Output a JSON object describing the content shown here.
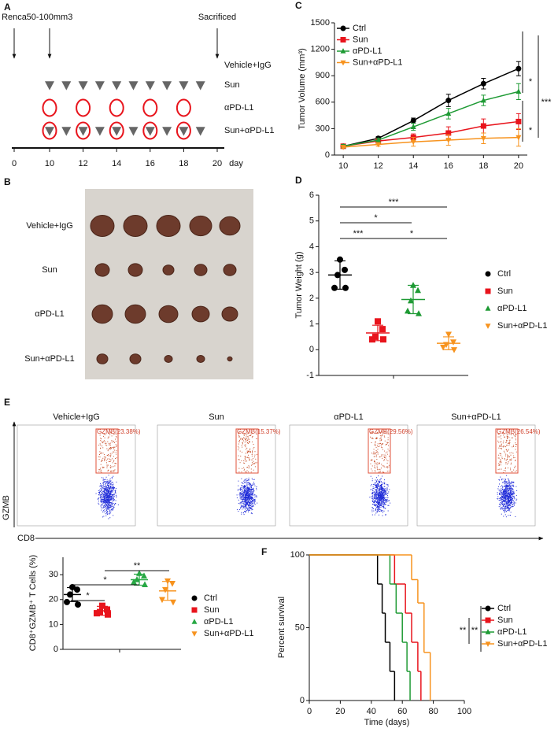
{
  "panel_labels": [
    "A",
    "B",
    "C",
    "D",
    "E",
    "F"
  ],
  "schedule": {
    "events": [
      {
        "label": "Renca",
        "day": 0
      },
      {
        "label": "50-100mm3",
        "day": 10
      },
      {
        "label": "Sacrificed",
        "day": 20
      }
    ],
    "rows": [
      "Vehicle+IgG",
      "Sun",
      "αPD-L1",
      "Sun+αPD-L1"
    ],
    "sun_days": [
      10,
      11,
      12,
      13,
      14,
      15,
      16,
      17,
      18,
      19
    ],
    "antibody_days": [
      10,
      12,
      14,
      16,
      18
    ],
    "ticks": [
      0,
      10,
      12,
      14,
      16,
      18,
      20
    ],
    "axis_label": "day"
  },
  "photo": {
    "rows": [
      "Vehicle+IgG",
      "Sun",
      "αPD-L1",
      "Sun+αPD-L1"
    ]
  },
  "flow": {
    "groups": [
      {
        "title": "Vehicle+IgG",
        "gate": "GZMB(23.38%)"
      },
      {
        "title": "Sun",
        "gate": "GZMB(15.37%)"
      },
      {
        "title": "αPD-L1",
        "gate": "GZMB(29.56%)"
      },
      {
        "title": "Sun+αPD-L1",
        "gate": "GZMB(26.54%)"
      }
    ],
    "y_label": "GZMB",
    "x_label": "CD8"
  },
  "chart_data": [
    {
      "type": "line",
      "y_label": "Tumor Volume (mm³)",
      "x": [
        10,
        12,
        14,
        16,
        18,
        20
      ],
      "xlim": [
        9.5,
        20.5
      ],
      "xticks": [
        10,
        12,
        14,
        16,
        18,
        20
      ],
      "ylim": [
        0,
        1500
      ],
      "yticks": [
        0,
        300,
        600,
        900,
        1200,
        1500
      ],
      "series": [
        {
          "name": "Ctrl",
          "color": "#000000",
          "marker": "circle",
          "values": [
            100,
            190,
            390,
            620,
            810,
            980
          ],
          "errors": [
            20,
            20,
            30,
            70,
            60,
            80
          ]
        },
        {
          "name": "Sun",
          "color": "#e8141c",
          "marker": "square",
          "values": [
            100,
            160,
            200,
            250,
            330,
            380
          ],
          "errors": [
            20,
            20,
            40,
            70,
            80,
            90
          ]
        },
        {
          "name": "αPD-L1",
          "color": "#1e9a34",
          "marker": "tri-up",
          "values": [
            100,
            170,
            320,
            470,
            620,
            720
          ],
          "errors": [
            20,
            20,
            40,
            60,
            60,
            90
          ]
        },
        {
          "name": "Sun+αPD-L1",
          "color": "#f7931e",
          "marker": "tri-down",
          "values": [
            90,
            120,
            150,
            170,
            190,
            200
          ],
          "errors": [
            10,
            20,
            50,
            60,
            60,
            100
          ]
        }
      ],
      "annotations": [
        "*",
        "*",
        "***"
      ]
    },
    {
      "type": "dot",
      "y_label": "Tumor Weight (g)",
      "ylim": [
        -1,
        6
      ],
      "yticks": [
        -1,
        0,
        1,
        2,
        3,
        4,
        5,
        6
      ],
      "series": [
        {
          "name": "Ctrl",
          "color": "#000000",
          "marker": "circle",
          "values": [
            3.5,
            3.1,
            2.9,
            2.4,
            2.4
          ],
          "mean": 2.9,
          "sd": 0.55
        },
        {
          "name": "Sun",
          "color": "#e8141c",
          "marker": "square",
          "values": [
            1.1,
            0.8,
            0.5,
            0.4,
            0.4
          ],
          "mean": 0.65,
          "sd": 0.3
        },
        {
          "name": "αPD-L1",
          "color": "#1e9a34",
          "marker": "tri-up",
          "values": [
            2.5,
            2.3,
            1.9,
            1.5,
            1.4
          ],
          "mean": 1.95,
          "sd": 0.55
        },
        {
          "name": "Sun+αPD-L1",
          "color": "#f7931e",
          "marker": "tri-down",
          "values": [
            0.6,
            0.3,
            0.2,
            0.1,
            0.0
          ],
          "mean": 0.25,
          "sd": 0.25
        }
      ],
      "annotations": [
        "***",
        "*",
        "***",
        "*"
      ]
    },
    {
      "type": "dot",
      "y_label": "CD8⁺GZMB⁺ T Cells (%)",
      "ylim": [
        0,
        37
      ],
      "yticks": [
        0,
        10,
        20,
        30
      ],
      "series": [
        {
          "name": "Ctrl",
          "color": "#000000",
          "marker": "circle",
          "values": [
            25,
            24,
            22,
            19,
            18
          ],
          "mean": 22,
          "sd": 2.8
        },
        {
          "name": "Sun",
          "color": "#e8141c",
          "marker": "square",
          "values": [
            17.5,
            16,
            15,
            14.5,
            14
          ],
          "mean": 15.5,
          "sd": 1.8
        },
        {
          "name": "αPD-L1",
          "color": "#27a844",
          "marker": "tri-up",
          "values": [
            30.5,
            29.5,
            28,
            27,
            26
          ],
          "mean": 28,
          "sd": 2.2
        },
        {
          "name": "Sun+αPD-L1",
          "color": "#f7931e",
          "marker": "tri-down",
          "values": [
            27.5,
            26.5,
            24,
            20,
            19
          ],
          "mean": 23.5,
          "sd": 3.8
        }
      ],
      "annotations": [
        "**",
        "*",
        "*"
      ]
    },
    {
      "type": "step",
      "x_label": "Time (days)",
      "y_label": "Percent survival",
      "xlim": [
        0,
        100
      ],
      "xticks": [
        0,
        20,
        40,
        60,
        80,
        100
      ],
      "ylim": [
        0,
        100
      ],
      "yticks": [
        0,
        50,
        100
      ],
      "series": [
        {
          "name": "Ctrl",
          "color": "#000000",
          "marker": "circle",
          "x": [
            0,
            44,
            47,
            49,
            52,
            55
          ],
          "values": [
            100,
            80,
            60,
            40,
            20,
            0
          ]
        },
        {
          "name": "Sun",
          "color": "#e8141c",
          "marker": "square",
          "x": [
            0,
            55,
            62,
            66,
            70,
            72
          ],
          "values": [
            100,
            80,
            60,
            40,
            20,
            0
          ]
        },
        {
          "name": "αPD-L1",
          "color": "#1e9a34",
          "marker": "tri-up",
          "x": [
            0,
            52,
            56,
            60,
            63,
            65
          ],
          "values": [
            100,
            80,
            60,
            40,
            20,
            0
          ]
        },
        {
          "name": "Sun+αPD-L1",
          "color": "#f7931e",
          "marker": "tri-down",
          "x": [
            0,
            66,
            70,
            74,
            78
          ],
          "values": [
            100,
            83,
            67,
            33,
            0
          ]
        }
      ],
      "annotations": [
        "**",
        "**"
      ]
    }
  ]
}
